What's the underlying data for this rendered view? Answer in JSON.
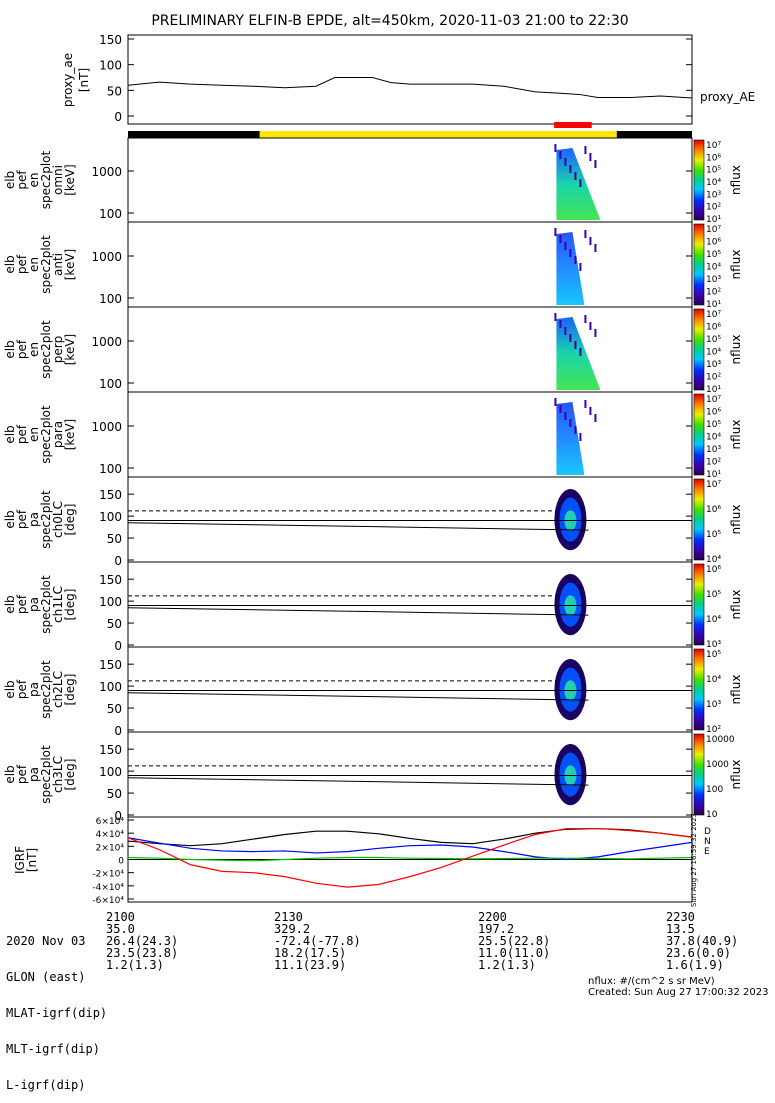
{
  "title": "PRELIMINARY ELFIN-B EPDE, alt=450km, 2020-11-03 21:00 to 22:30",
  "chart_data": [
    {
      "type": "line",
      "panel": "proxy_ae",
      "ylabel": [
        "proxy_ae",
        "[nT]"
      ],
      "ylim": [
        0,
        150
      ],
      "yticks": [
        "0",
        "50",
        "100",
        "150"
      ],
      "legend": "proxy_AE",
      "x": [
        "21:00",
        "21:05",
        "21:10",
        "21:15",
        "21:20",
        "21:25",
        "21:30",
        "21:33",
        "21:36",
        "21:39",
        "21:42",
        "21:45",
        "21:50",
        "21:55",
        "22:00",
        "22:05",
        "22:08",
        "22:12",
        "22:15",
        "22:20",
        "22:25",
        "22:30"
      ],
      "values": [
        60,
        66,
        62,
        60,
        58,
        55,
        58,
        75,
        75,
        75,
        65,
        62,
        62,
        62,
        58,
        47,
        45,
        42,
        36,
        36,
        39,
        35
      ]
    },
    {
      "type": "heatmap",
      "panel": "omni",
      "ylabel": [
        "elb",
        "pef",
        "en",
        "spec2plot",
        "omni",
        "[keV]"
      ],
      "yticks": [
        "100",
        "1000"
      ],
      "ylog": true,
      "colorbar": {
        "label": "nflux",
        "ticks": [
          "10¹",
          "10²",
          "10³",
          "10⁴",
          "10⁵",
          "10⁶",
          "10⁷"
        ]
      }
    },
    {
      "type": "heatmap",
      "panel": "anti",
      "ylabel": [
        "elb",
        "pef",
        "en",
        "spec2plot",
        "anti",
        "[keV]"
      ],
      "yticks": [
        "100",
        "1000"
      ],
      "ylog": true,
      "colorbar": {
        "label": "nflux",
        "ticks": [
          "10¹",
          "10²",
          "10³",
          "10⁴",
          "10⁵",
          "10⁶",
          "10⁷"
        ]
      }
    },
    {
      "type": "heatmap",
      "panel": "perp",
      "ylabel": [
        "elb",
        "pef",
        "en",
        "spec2plot",
        "perp",
        "[keV]"
      ],
      "yticks": [
        "100",
        "1000"
      ],
      "ylog": true,
      "colorbar": {
        "label": "nflux",
        "ticks": [
          "10¹",
          "10²",
          "10³",
          "10⁴",
          "10⁵",
          "10⁶",
          "10⁷"
        ]
      }
    },
    {
      "type": "heatmap",
      "panel": "para",
      "ylabel": [
        "elb",
        "pef",
        "en",
        "spec2plot",
        "para",
        "[keV]"
      ],
      "yticks": [
        "100",
        "1000"
      ],
      "ylog": true,
      "colorbar": {
        "label": "nflux",
        "ticks": [
          "10¹",
          "10²",
          "10³",
          "10⁴",
          "10⁵",
          "10⁶",
          "10⁷"
        ]
      }
    },
    {
      "type": "heatmap",
      "panel": "ch0LC",
      "ylabel": [
        "elb",
        "pef",
        "pa",
        "spec2plot",
        "ch0LC",
        "[deg]"
      ],
      "ylim": [
        0,
        180
      ],
      "yticks": [
        "0",
        "50",
        "100",
        "150"
      ],
      "colorbar": {
        "label": "nflux",
        "ticks": [
          "10⁴",
          "10⁵",
          "10⁶",
          "10⁷"
        ]
      }
    },
    {
      "type": "heatmap",
      "panel": "ch1LC",
      "ylabel": [
        "elb",
        "pef",
        "pa",
        "spec2plot",
        "ch1LC",
        "[deg]"
      ],
      "ylim": [
        0,
        180
      ],
      "yticks": [
        "0",
        "50",
        "100",
        "150"
      ],
      "colorbar": {
        "label": "nflux",
        "ticks": [
          "10³",
          "10⁴",
          "10⁵",
          "10⁶"
        ]
      }
    },
    {
      "type": "heatmap",
      "panel": "ch2LC",
      "ylabel": [
        "elb",
        "pef",
        "pa",
        "spec2plot",
        "ch2LC",
        "[deg]"
      ],
      "ylim": [
        0,
        180
      ],
      "yticks": [
        "0",
        "50",
        "100",
        "150"
      ],
      "colorbar": {
        "label": "nflux",
        "ticks": [
          "10²",
          "10³",
          "10⁴",
          "10⁵"
        ]
      }
    },
    {
      "type": "heatmap",
      "panel": "ch3LC",
      "ylabel": [
        "elb",
        "pef",
        "pa",
        "spec2plot",
        "ch3LC",
        "[deg]"
      ],
      "ylim": [
        0,
        180
      ],
      "yticks": [
        "0",
        "50",
        "100",
        "150"
      ],
      "colorbar": {
        "label": "nflux",
        "ticks": [
          "10",
          "100",
          "1000",
          "10000"
        ]
      }
    },
    {
      "type": "line",
      "panel": "igrf",
      "ylabel": [
        "IGRF",
        "[nT]"
      ],
      "ylim": [
        -60000,
        60000
      ],
      "yticks": [
        "-6×10⁴",
        "-4×10⁴",
        "-2×10⁴",
        "0",
        "2×10⁴",
        "4×10⁴",
        "6×10⁴"
      ],
      "x_min": [
        0,
        5,
        10,
        15,
        20,
        25,
        30,
        35,
        40,
        45,
        50,
        55,
        60,
        65,
        70,
        75,
        80,
        85,
        90
      ],
      "series": [
        {
          "name": "D",
          "color": "#000000",
          "values": [
            28000,
            24000,
            21000,
            24000,
            31000,
            38000,
            43000,
            43000,
            39000,
            32000,
            26000,
            24000,
            31000,
            40000,
            46000,
            47000,
            45000,
            40000,
            34000
          ]
        },
        {
          "name": "N",
          "color": "#0000ff",
          "values": [
            33000,
            25000,
            17000,
            13000,
            12000,
            13000,
            10000,
            12000,
            17000,
            21000,
            22000,
            19000,
            12000,
            4000,
            0,
            4000,
            12000,
            19000,
            26000
          ]
        },
        {
          "name": "E",
          "color": "#00c000",
          "values": [
            3000,
            2000,
            0,
            -1000,
            -2000,
            0,
            2000,
            3000,
            3000,
            2000,
            1500,
            1000,
            1500,
            2000,
            2000,
            1500,
            1000,
            2000,
            3000
          ]
        },
        {
          "name": "",
          "color": "#ff0000",
          "values": [
            33000,
            15000,
            -8000,
            -18000,
            -20000,
            -26000,
            -36000,
            -42000,
            -38000,
            -26000,
            -12000,
            5000,
            22000,
            38000,
            47000,
            47000,
            44000,
            40000,
            34000
          ]
        }
      ],
      "side_text": "Sun Aug 27 16:59:32 2023"
    }
  ],
  "time_axis": {
    "labels": [
      "2020 Nov 03",
      "GLON (east)",
      "MLAT-igrf(dip)",
      "MLT-igrf(dip)",
      "L-igrf(dip)"
    ],
    "columns": [
      {
        "time": "2100",
        "glon": "35.0",
        "mlat": "26.4(24.3)",
        "mlt": "23.5(23.8)",
        "l": "1.2(1.3)"
      },
      {
        "time": "2130",
        "glon": "329.2",
        "mlat": "-72.4(-77.8)",
        "mlt": "18.2(17.5)",
        "l": "11.1(23.9)"
      },
      {
        "time": "2200",
        "glon": "197.2",
        "mlat": "25.5(22.8)",
        "mlt": "11.0(11.0)",
        "l": "1.2(1.3)"
      },
      {
        "time": "2230",
        "glon": "13.5",
        "mlat": "37.8(40.9)",
        "mlt": "23.6(0.0)",
        "l": "1.6(1.9)"
      }
    ]
  },
  "footer": {
    "units": "nflux: #/(cm^2 s sr MeV)",
    "created": "Created: Sun Aug 27 17:00:32 2023"
  },
  "colors": {
    "status_bar_yellow": "#ffe600",
    "status_bar_black": "#000000",
    "status_bar_red": "#ff0000"
  }
}
